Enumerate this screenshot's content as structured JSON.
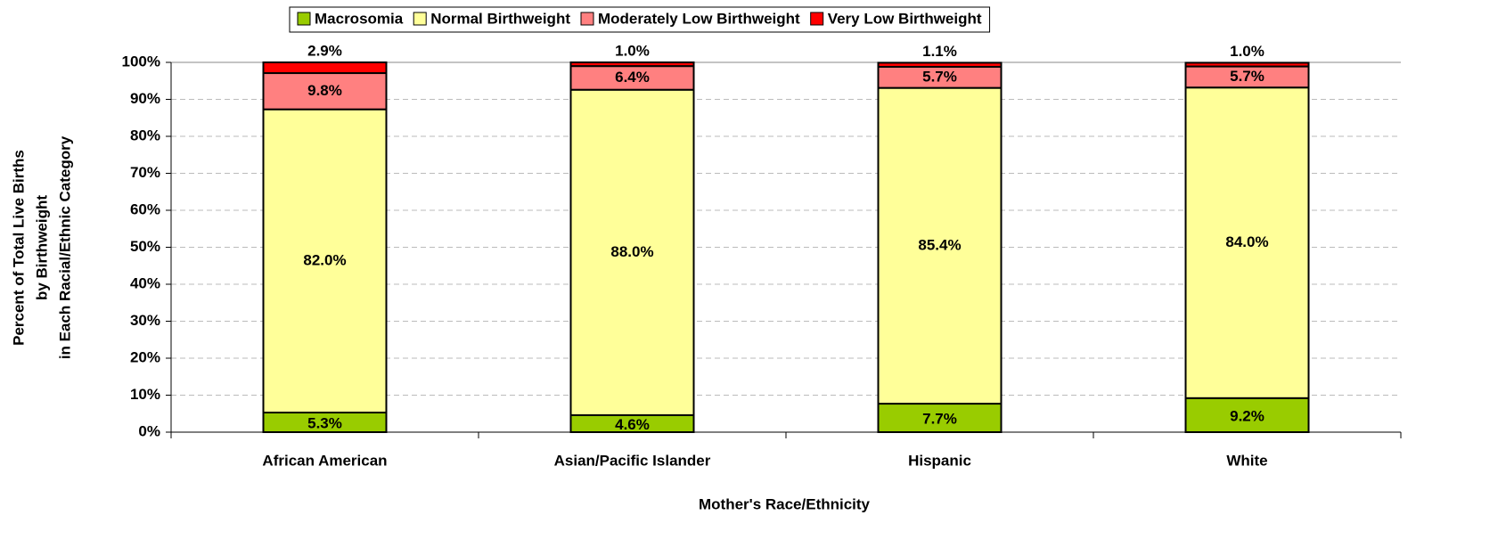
{
  "chart_data": {
    "type": "stacked_bar",
    "x_label": "Mother's Race/Ethnicity",
    "y_label": [
      "Percent of Total Live Births",
      "by Birthweight",
      "in Each Racial/Ethnic Category"
    ],
    "categories": [
      "African American",
      "Asian/Pacific Islander",
      "Hispanic",
      "White"
    ],
    "series": [
      {
        "name": "Macrosomia",
        "color": "#99cc00",
        "values": [
          5.3,
          4.6,
          7.7,
          9.2
        ],
        "value_labels": [
          "5.3%",
          "4.6%",
          "7.7%",
          "9.2%"
        ]
      },
      {
        "name": "Normal Birthweight",
        "color": "#ffff99",
        "values": [
          82.0,
          88.0,
          85.4,
          84.0
        ],
        "value_labels": [
          "82.0%",
          "88.0%",
          "85.4%",
          "84.0%"
        ]
      },
      {
        "name": "Moderately Low Birthweight",
        "color": "#ff8080",
        "values": [
          9.8,
          6.4,
          5.7,
          5.7
        ],
        "value_labels": [
          "9.8%",
          "6.4%",
          "5.7%",
          "5.7%"
        ]
      },
      {
        "name": "Very Low Birthweight",
        "color": "#ff0000",
        "values": [
          2.9,
          1.0,
          1.1,
          1.0
        ],
        "value_labels": [
          "2.9%",
          "1.0%",
          "1.1%",
          "1.0%"
        ]
      }
    ],
    "ylim": [
      0,
      100
    ],
    "yticks": [
      {
        "value": 0,
        "label": "0%"
      },
      {
        "value": 10,
        "label": "10%"
      },
      {
        "value": 20,
        "label": "20%"
      },
      {
        "value": 30,
        "label": "30%"
      },
      {
        "value": 40,
        "label": "40%"
      },
      {
        "value": 50,
        "label": "50%"
      },
      {
        "value": 60,
        "label": "60%"
      },
      {
        "value": 70,
        "label": "70%"
      },
      {
        "value": 80,
        "label": "80%"
      },
      {
        "value": 90,
        "label": "90%"
      },
      {
        "value": 100,
        "label": "100%"
      }
    ],
    "grid": true,
    "legend": "top"
  }
}
